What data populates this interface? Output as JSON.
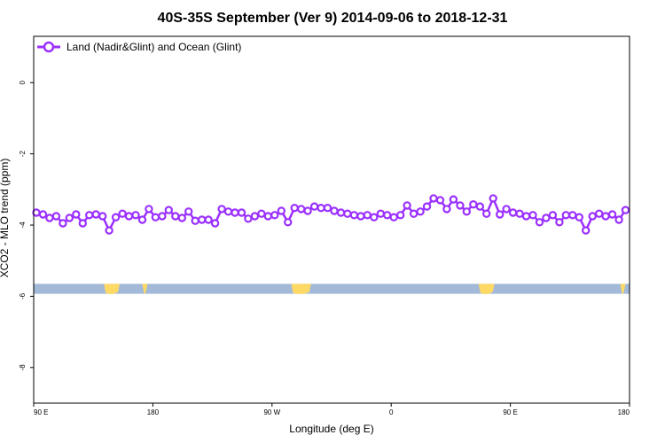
{
  "chart_data": {
    "type": "line",
    "title": "40S-35S September (Ver 9)   2014-09-06 to 2018-12-31",
    "xlabel": "Longitude (deg E)",
    "ylabel": "XCO2 - MLO trend (ppm)",
    "x_ticks": [
      {
        "value": 90,
        "label": "90 E"
      },
      {
        "value": 180,
        "label": "180"
      },
      {
        "value": 270,
        "label": "90 W"
      },
      {
        "value": 360,
        "label": "0"
      },
      {
        "value": 450,
        "label": "90 E"
      },
      {
        "value": 540,
        "label": "180"
      }
    ],
    "y_ticks": [
      {
        "value": 0,
        "label": "0"
      },
      {
        "value": -2,
        "label": "-2"
      },
      {
        "value": -4,
        "label": "-4"
      },
      {
        "value": -6,
        "label": "-6"
      },
      {
        "value": -8,
        "label": "-8"
      }
    ],
    "xlim": [
      90,
      540
    ],
    "ylim": [
      -9.0,
      1.3
    ],
    "grid": false,
    "legend_position": "top-left",
    "series": [
      {
        "name": "Land (Nadir&Glint) and Ocean (Glint)",
        "color": "#9b30ff",
        "x": [
          92,
          97,
          102,
          107,
          112,
          117,
          122,
          127,
          132,
          137,
          142,
          147,
          152,
          157,
          162,
          167,
          172,
          177,
          182,
          187,
          192,
          197,
          202,
          207,
          212,
          217,
          222,
          227,
          232,
          237,
          242,
          247,
          252,
          257,
          262,
          267,
          272,
          277,
          282,
          287,
          292,
          297,
          302,
          307,
          312,
          317,
          322,
          327,
          332,
          337,
          342,
          347,
          352,
          357,
          362,
          367,
          372,
          377,
          382,
          387,
          392,
          397,
          402,
          407,
          412,
          417,
          422,
          427,
          432,
          437,
          442,
          447,
          452,
          457,
          462,
          467,
          472,
          477,
          482,
          487,
          492,
          497,
          502,
          507,
          512,
          517,
          522,
          527,
          532,
          537
        ],
        "y": [
          -3.65,
          -3.7,
          -3.8,
          -3.75,
          -3.95,
          -3.8,
          -3.7,
          -3.95,
          -3.72,
          -3.7,
          -3.75,
          -4.15,
          -3.78,
          -3.68,
          -3.75,
          -3.72,
          -3.85,
          -3.55,
          -3.78,
          -3.75,
          -3.58,
          -3.75,
          -3.8,
          -3.62,
          -3.88,
          -3.85,
          -3.85,
          -3.95,
          -3.55,
          -3.62,
          -3.65,
          -3.65,
          -3.82,
          -3.75,
          -3.68,
          -3.75,
          -3.72,
          -3.6,
          -3.92,
          -3.52,
          -3.55,
          -3.6,
          -3.48,
          -3.52,
          -3.52,
          -3.6,
          -3.65,
          -3.68,
          -3.72,
          -3.75,
          -3.72,
          -3.78,
          -3.68,
          -3.72,
          -3.78,
          -3.72,
          -3.45,
          -3.68,
          -3.62,
          -3.48,
          -3.25,
          -3.3,
          -3.55,
          -3.28,
          -3.45,
          -3.62,
          -3.42,
          -3.48,
          -3.68,
          -3.25,
          -3.7,
          -3.55,
          -3.65,
          -3.68,
          -3.75,
          -3.72,
          -3.92,
          -3.8,
          -3.72,
          -3.92,
          -3.72,
          -3.72,
          -3.78,
          -4.15,
          -3.75,
          -3.68,
          -3.75,
          -3.7,
          -3.85,
          -3.58
        ]
      }
    ],
    "map_strip": {
      "y_top": -5.65,
      "y_bottom": -5.93,
      "ocean_color": "#a2b9d8",
      "land_color": "#ffd966"
    }
  }
}
